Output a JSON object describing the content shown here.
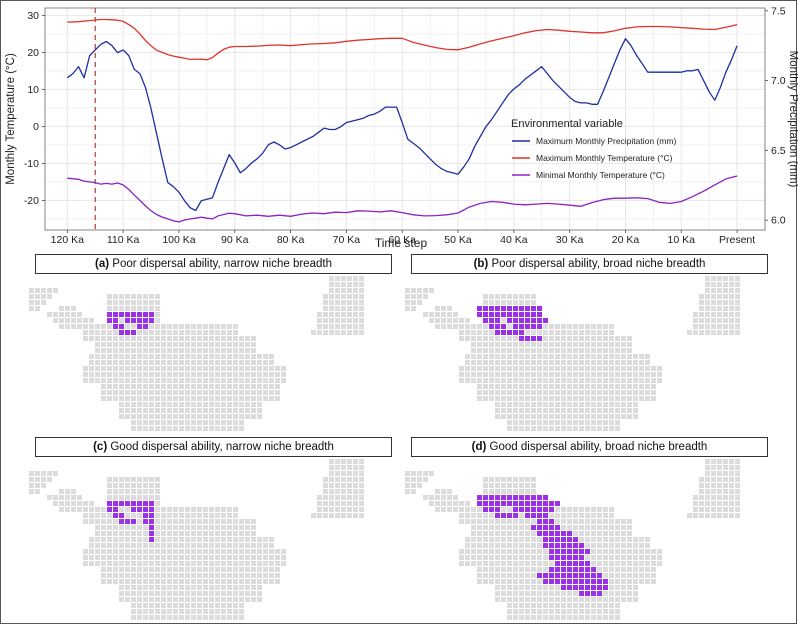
{
  "chart_data": {
    "type": "line",
    "xlabel": "Time step",
    "ylabel_left": "Monthly Temperature (°C)",
    "ylabel_right": "Monthly Precipitation (mm)",
    "x_range_ka": [
      124,
      -5
    ],
    "y_left_lim": [
      -28,
      32
    ],
    "y_right_lim": [
      5.93,
      7.52
    ],
    "x_ticks": [
      {
        "label": "120 Ka",
        "ka": 120
      },
      {
        "label": "110 Ka",
        "ka": 110
      },
      {
        "label": "100 Ka",
        "ka": 100
      },
      {
        "label": "90 Ka",
        "ka": 90
      },
      {
        "label": "80 Ka",
        "ka": 80
      },
      {
        "label": "70 Ka",
        "ka": 70
      },
      {
        "label": "60 Ka",
        "ka": 60
      },
      {
        "label": "50 Ka",
        "ka": 50
      },
      {
        "label": "40 Ka",
        "ka": 40
      },
      {
        "label": "30 Ka",
        "ka": 30
      },
      {
        "label": "20 Ka",
        "ka": 20
      },
      {
        "label": "10 Ka",
        "ka": 10
      },
      {
        "label": "Present",
        "ka": 0
      }
    ],
    "y_left_ticks": [
      30,
      20,
      10,
      0,
      -10,
      -20
    ],
    "y_right_ticks": [
      7.5,
      7.0,
      6.5,
      6.0
    ],
    "vline_ka": 115,
    "legend_title": "Environmental variable",
    "series": [
      {
        "name": "Maximum Monthly Precipitation (mm)",
        "color": "#1f2fa3",
        "axis": "right",
        "points": [
          [
            120,
            7.02
          ],
          [
            119,
            7.05
          ],
          [
            118,
            7.1
          ],
          [
            117,
            7.02
          ],
          [
            116,
            7.18
          ],
          [
            115,
            7.22
          ],
          [
            114,
            7.26
          ],
          [
            113,
            7.28
          ],
          [
            112,
            7.25
          ],
          [
            111,
            7.2
          ],
          [
            110,
            7.22
          ],
          [
            109,
            7.18
          ],
          [
            108,
            7.08
          ],
          [
            107,
            7.05
          ],
          [
            106,
            6.95
          ],
          [
            105,
            6.8
          ],
          [
            104,
            6.62
          ],
          [
            103,
            6.44
          ],
          [
            102,
            6.27
          ],
          [
            101,
            6.24
          ],
          [
            100,
            6.2
          ],
          [
            99,
            6.14
          ],
          [
            98,
            6.09
          ],
          [
            97,
            6.07
          ],
          [
            96,
            6.14
          ],
          [
            95,
            6.15
          ],
          [
            94,
            6.16
          ],
          [
            93,
            6.27
          ],
          [
            92,
            6.37
          ],
          [
            91,
            6.47
          ],
          [
            90,
            6.41
          ],
          [
            89,
            6.34
          ],
          [
            88,
            6.37
          ],
          [
            87,
            6.41
          ],
          [
            86,
            6.44
          ],
          [
            85,
            6.48
          ],
          [
            84,
            6.54
          ],
          [
            83,
            6.56
          ],
          [
            82,
            6.54
          ],
          [
            81,
            6.51
          ],
          [
            80,
            6.52
          ],
          [
            79,
            6.54
          ],
          [
            78,
            6.56
          ],
          [
            77,
            6.58
          ],
          [
            76,
            6.6
          ],
          [
            75,
            6.63
          ],
          [
            74,
            6.66
          ],
          [
            73,
            6.65
          ],
          [
            72,
            6.65
          ],
          [
            71,
            6.67
          ],
          [
            70,
            6.7
          ],
          [
            69,
            6.71
          ],
          [
            68,
            6.72
          ],
          [
            67,
            6.73
          ],
          [
            66,
            6.75
          ],
          [
            65,
            6.76
          ],
          [
            64,
            6.78
          ],
          [
            63,
            6.81
          ],
          [
            62,
            6.81
          ],
          [
            61,
            6.81
          ],
          [
            60,
            6.7
          ],
          [
            59,
            6.58
          ],
          [
            58,
            6.55
          ],
          [
            57,
            6.52
          ],
          [
            56,
            6.48
          ],
          [
            55,
            6.44
          ],
          [
            54,
            6.4
          ],
          [
            53,
            6.37
          ],
          [
            52,
            6.35
          ],
          [
            51,
            6.34
          ],
          [
            50,
            6.33
          ],
          [
            49,
            6.38
          ],
          [
            48,
            6.44
          ],
          [
            47,
            6.53
          ],
          [
            46,
            6.6
          ],
          [
            45,
            6.67
          ],
          [
            44,
            6.72
          ],
          [
            43,
            6.78
          ],
          [
            42,
            6.84
          ],
          [
            41,
            6.9
          ],
          [
            40,
            6.94
          ],
          [
            39,
            6.97
          ],
          [
            38,
            7.01
          ],
          [
            37,
            7.04
          ],
          [
            36,
            7.07
          ],
          [
            35,
            7.1
          ],
          [
            34,
            7.05
          ],
          [
            33,
            7.0
          ],
          [
            32,
            6.96
          ],
          [
            31,
            6.92
          ],
          [
            30,
            6.88
          ],
          [
            29,
            6.85
          ],
          [
            28,
            6.84
          ],
          [
            27,
            6.84
          ],
          [
            26,
            6.83
          ],
          [
            25,
            6.83
          ],
          [
            24,
            6.92
          ],
          [
            23,
            7.02
          ],
          [
            22,
            7.12
          ],
          [
            21,
            7.22
          ],
          [
            20,
            7.3
          ],
          [
            19,
            7.25
          ],
          [
            18,
            7.18
          ],
          [
            17,
            7.12
          ],
          [
            16,
            7.06
          ],
          [
            15,
            7.06
          ],
          [
            14,
            7.06
          ],
          [
            13,
            7.06
          ],
          [
            12,
            7.06
          ],
          [
            11,
            7.06
          ],
          [
            10,
            7.06
          ],
          [
            9,
            7.07
          ],
          [
            8,
            7.07
          ],
          [
            7,
            7.08
          ],
          [
            6,
            7.0
          ],
          [
            5,
            6.92
          ],
          [
            4,
            6.86
          ],
          [
            3,
            6.95
          ],
          [
            2,
            7.06
          ],
          [
            1,
            7.15
          ],
          [
            0,
            7.25
          ]
        ]
      },
      {
        "name": "Maximum Monthly Temperature (°C)",
        "color": "#e0342b",
        "axis": "left",
        "points": [
          [
            120,
            28.2
          ],
          [
            118,
            28.3
          ],
          [
            116,
            28.6
          ],
          [
            114,
            28.9
          ],
          [
            113,
            28.9
          ],
          [
            112,
            28.8
          ],
          [
            111,
            28.7
          ],
          [
            110,
            28.4
          ],
          [
            109,
            27.5
          ],
          [
            108,
            26.5
          ],
          [
            107,
            25.0
          ],
          [
            106,
            23.2
          ],
          [
            105,
            21.8
          ],
          [
            104,
            20.6
          ],
          [
            103,
            20.0
          ],
          [
            102,
            19.4
          ],
          [
            101,
            19.0
          ],
          [
            100,
            18.7
          ],
          [
            99,
            18.4
          ],
          [
            98,
            18.1
          ],
          [
            96,
            18.2
          ],
          [
            95,
            18.0
          ],
          [
            94,
            18.6
          ],
          [
            93,
            19.8
          ],
          [
            92,
            20.8
          ],
          [
            91,
            21.4
          ],
          [
            90,
            21.6
          ],
          [
            88,
            21.6
          ],
          [
            86,
            21.7
          ],
          [
            84,
            21.9
          ],
          [
            82,
            22.0
          ],
          [
            80,
            21.8
          ],
          [
            78,
            22.1
          ],
          [
            76,
            22.3
          ],
          [
            74,
            22.4
          ],
          [
            72,
            22.6
          ],
          [
            70,
            23.0
          ],
          [
            68,
            23.3
          ],
          [
            66,
            23.5
          ],
          [
            64,
            23.7
          ],
          [
            62,
            23.8
          ],
          [
            60,
            23.8
          ],
          [
            58,
            22.7
          ],
          [
            56,
            22.0
          ],
          [
            54,
            21.3
          ],
          [
            52,
            20.8
          ],
          [
            50,
            20.7
          ],
          [
            48,
            21.4
          ],
          [
            46,
            22.3
          ],
          [
            44,
            23.1
          ],
          [
            42,
            23.8
          ],
          [
            40,
            24.5
          ],
          [
            38,
            25.3
          ],
          [
            36,
            25.9
          ],
          [
            34,
            26.2
          ],
          [
            32,
            26.0
          ],
          [
            30,
            25.7
          ],
          [
            28,
            25.5
          ],
          [
            26,
            25.3
          ],
          [
            24,
            25.3
          ],
          [
            22,
            25.8
          ],
          [
            20,
            26.5
          ],
          [
            18,
            26.9
          ],
          [
            16,
            27.0
          ],
          [
            14,
            27.0
          ],
          [
            12,
            26.9
          ],
          [
            10,
            26.7
          ],
          [
            8,
            26.5
          ],
          [
            6,
            26.3
          ],
          [
            4,
            26.2
          ],
          [
            2,
            26.8
          ],
          [
            0,
            27.5
          ]
        ]
      },
      {
        "name": "Minimal Monthly Temperature (°C)",
        "color": "#8a23c2",
        "axis": "left",
        "points": [
          [
            120,
            -14.0
          ],
          [
            118,
            -14.3
          ],
          [
            117,
            -14.8
          ],
          [
            116,
            -15.0
          ],
          [
            115,
            -15.2
          ],
          [
            114,
            -15.6
          ],
          [
            113,
            -15.4
          ],
          [
            112,
            -15.6
          ],
          [
            111,
            -15.3
          ],
          [
            110,
            -15.8
          ],
          [
            109,
            -17.0
          ],
          [
            108,
            -18.6
          ],
          [
            107,
            -20.0
          ],
          [
            106,
            -21.5
          ],
          [
            105,
            -22.8
          ],
          [
            104,
            -23.8
          ],
          [
            103,
            -24.5
          ],
          [
            102,
            -25.0
          ],
          [
            101,
            -25.5
          ],
          [
            100,
            -25.8
          ],
          [
            99,
            -25.3
          ],
          [
            98,
            -25.0
          ],
          [
            97,
            -24.8
          ],
          [
            96,
            -24.5
          ],
          [
            95,
            -24.8
          ],
          [
            94,
            -25.0
          ],
          [
            93,
            -24.2
          ],
          [
            92,
            -23.8
          ],
          [
            91,
            -23.5
          ],
          [
            90,
            -23.6
          ],
          [
            88,
            -24.2
          ],
          [
            86,
            -24.0
          ],
          [
            84,
            -24.3
          ],
          [
            82,
            -24.0
          ],
          [
            80,
            -24.3
          ],
          [
            78,
            -23.7
          ],
          [
            76,
            -23.4
          ],
          [
            74,
            -23.6
          ],
          [
            72,
            -23.2
          ],
          [
            70,
            -23.3
          ],
          [
            68,
            -22.8
          ],
          [
            66,
            -22.9
          ],
          [
            64,
            -23.1
          ],
          [
            62,
            -22.8
          ],
          [
            60,
            -23.3
          ],
          [
            58,
            -23.9
          ],
          [
            56,
            -24.2
          ],
          [
            54,
            -24.1
          ],
          [
            52,
            -23.9
          ],
          [
            50,
            -23.4
          ],
          [
            48,
            -21.8
          ],
          [
            46,
            -20.8
          ],
          [
            44,
            -20.3
          ],
          [
            42,
            -20.5
          ],
          [
            40,
            -21.0
          ],
          [
            38,
            -21.2
          ],
          [
            36,
            -21.0
          ],
          [
            34,
            -20.8
          ],
          [
            32,
            -21.0
          ],
          [
            30,
            -21.3
          ],
          [
            28,
            -21.6
          ],
          [
            26,
            -20.6
          ],
          [
            24,
            -19.8
          ],
          [
            22,
            -19.4
          ],
          [
            20,
            -19.4
          ],
          [
            18,
            -19.3
          ],
          [
            16,
            -19.5
          ],
          [
            14,
            -20.5
          ],
          [
            12,
            -20.8
          ],
          [
            10,
            -20.3
          ],
          [
            8,
            -19.0
          ],
          [
            6,
            -17.5
          ],
          [
            4,
            -15.8
          ],
          [
            2,
            -14.2
          ],
          [
            0,
            -13.4
          ]
        ]
      }
    ]
  },
  "panels": [
    {
      "letter": "(a)",
      "title": "Poor dispersal ability, narrow niche breadth"
    },
    {
      "letter": "(b)",
      "title": "Poor dispersal ability, broad niche breadth"
    },
    {
      "letter": "(c)",
      "title": "Good dispersal ability, narrow niche breadth"
    },
    {
      "letter": "(d)",
      "title": "Good dispersal ability, broad niche breadth"
    }
  ],
  "colors": {
    "grid": "#e6e6e6",
    "land": "#dcdcdc",
    "range": "#9b30e8",
    "vline": "#b94a4a"
  }
}
